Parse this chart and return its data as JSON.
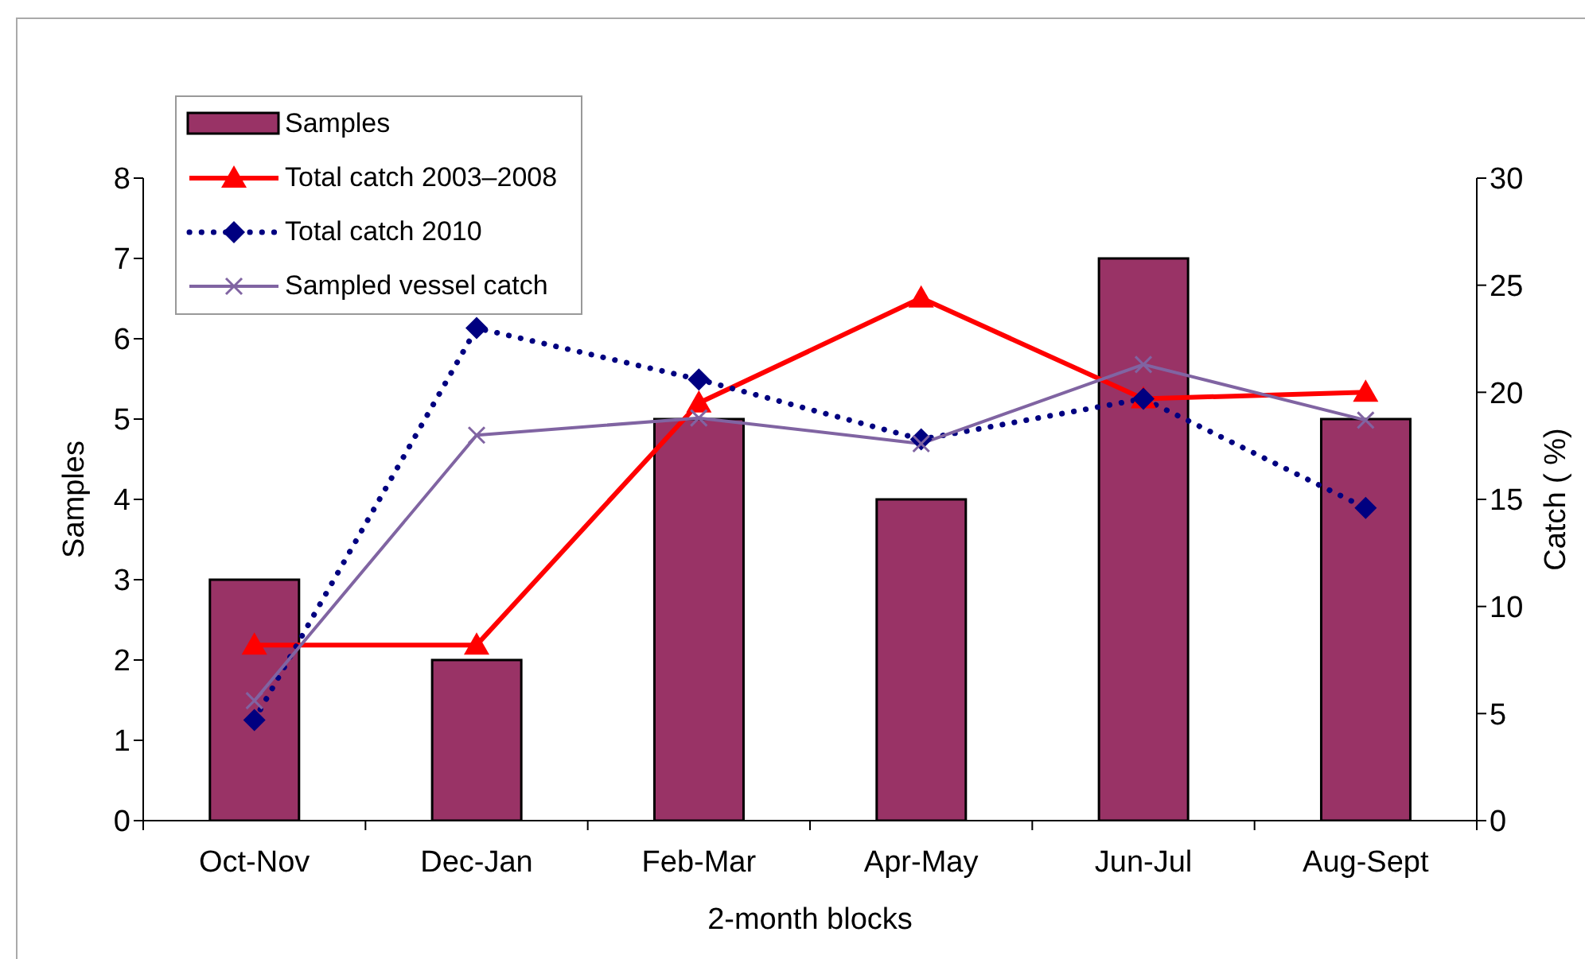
{
  "chart_data": {
    "type": "bar",
    "categories": [
      "Oct-Nov",
      "Dec-Jan",
      "Feb-Mar",
      "Apr-May",
      "Jun-Jul",
      "Aug-Sept"
    ],
    "xlabel": "2-month blocks",
    "ylabel": "Samples",
    "y2label": "Catch ( %)",
    "ylim": [
      0,
      8
    ],
    "yticks": [
      0,
      1,
      2,
      3,
      4,
      5,
      6,
      7,
      8
    ],
    "y2lim": [
      0,
      30
    ],
    "y2ticks": [
      0,
      5,
      10,
      15,
      20,
      25,
      30
    ],
    "legend": "top left",
    "series": [
      {
        "name": "Samples",
        "color": "#993366",
        "values": [
          3,
          2,
          5,
          4,
          7,
          5
        ]
      },
      {
        "name": "Total catch 2003–2008",
        "type": "line",
        "axis": "y2",
        "color": "#ff0000",
        "marker": "triangle",
        "line_style": "solid",
        "values": [
          8.2,
          8.2,
          19.5,
          24.4,
          19.7,
          20.0
        ]
      },
      {
        "name": "Total catch 2010",
        "type": "line",
        "axis": "y2",
        "color": "#000080",
        "marker": "diamond",
        "line_style": "dotted",
        "values": [
          4.7,
          23.0,
          20.6,
          17.8,
          19.7,
          14.6
        ]
      },
      {
        "name": "Sampled vessel catch",
        "type": "line",
        "axis": "y2",
        "color": "#8064a2",
        "marker": "cross",
        "line_style": "solid",
        "values": [
          5.6,
          18.0,
          18.8,
          17.6,
          21.3,
          18.7
        ]
      }
    ]
  }
}
